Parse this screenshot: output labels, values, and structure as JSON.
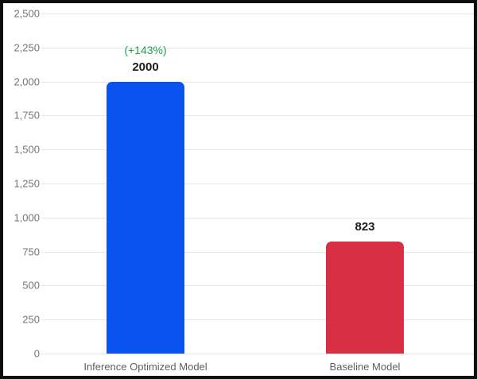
{
  "chart_data": {
    "type": "bar",
    "title": "",
    "xlabel": "",
    "ylabel": "",
    "categories": [
      "Inference Optimized Model",
      "Baseline Model"
    ],
    "values": [
      2000,
      823
    ],
    "value_labels": [
      "2000",
      "823"
    ],
    "annotations": [
      "(+143%)",
      ""
    ],
    "bar_colors": [
      "#0a53f0",
      "#d92f44"
    ],
    "ylim": [
      0,
      2500
    ],
    "ytick_step": 250,
    "yticks": [
      {
        "value": 0,
        "label": "0"
      },
      {
        "value": 250,
        "label": "250"
      },
      {
        "value": 500,
        "label": "500"
      },
      {
        "value": 750,
        "label": "750"
      },
      {
        "value": 1000,
        "label": "1,000"
      },
      {
        "value": 1250,
        "label": "1,250"
      },
      {
        "value": 1500,
        "label": "1,500"
      },
      {
        "value": 1750,
        "label": "1,750"
      },
      {
        "value": 2000,
        "label": "2,000"
      },
      {
        "value": 2250,
        "label": "2,250"
      },
      {
        "value": 2500,
        "label": "2,500"
      }
    ],
    "grid": true,
    "legend": "none",
    "colors": {
      "annotation_green": "#1fa24d",
      "gridline": "#e6e6e6",
      "tick_text": "#757575",
      "category_text": "#5f5f5f",
      "value_text": "#1c1c1c",
      "frame_border": "#0d0d0d",
      "background": "#ffffff"
    }
  }
}
